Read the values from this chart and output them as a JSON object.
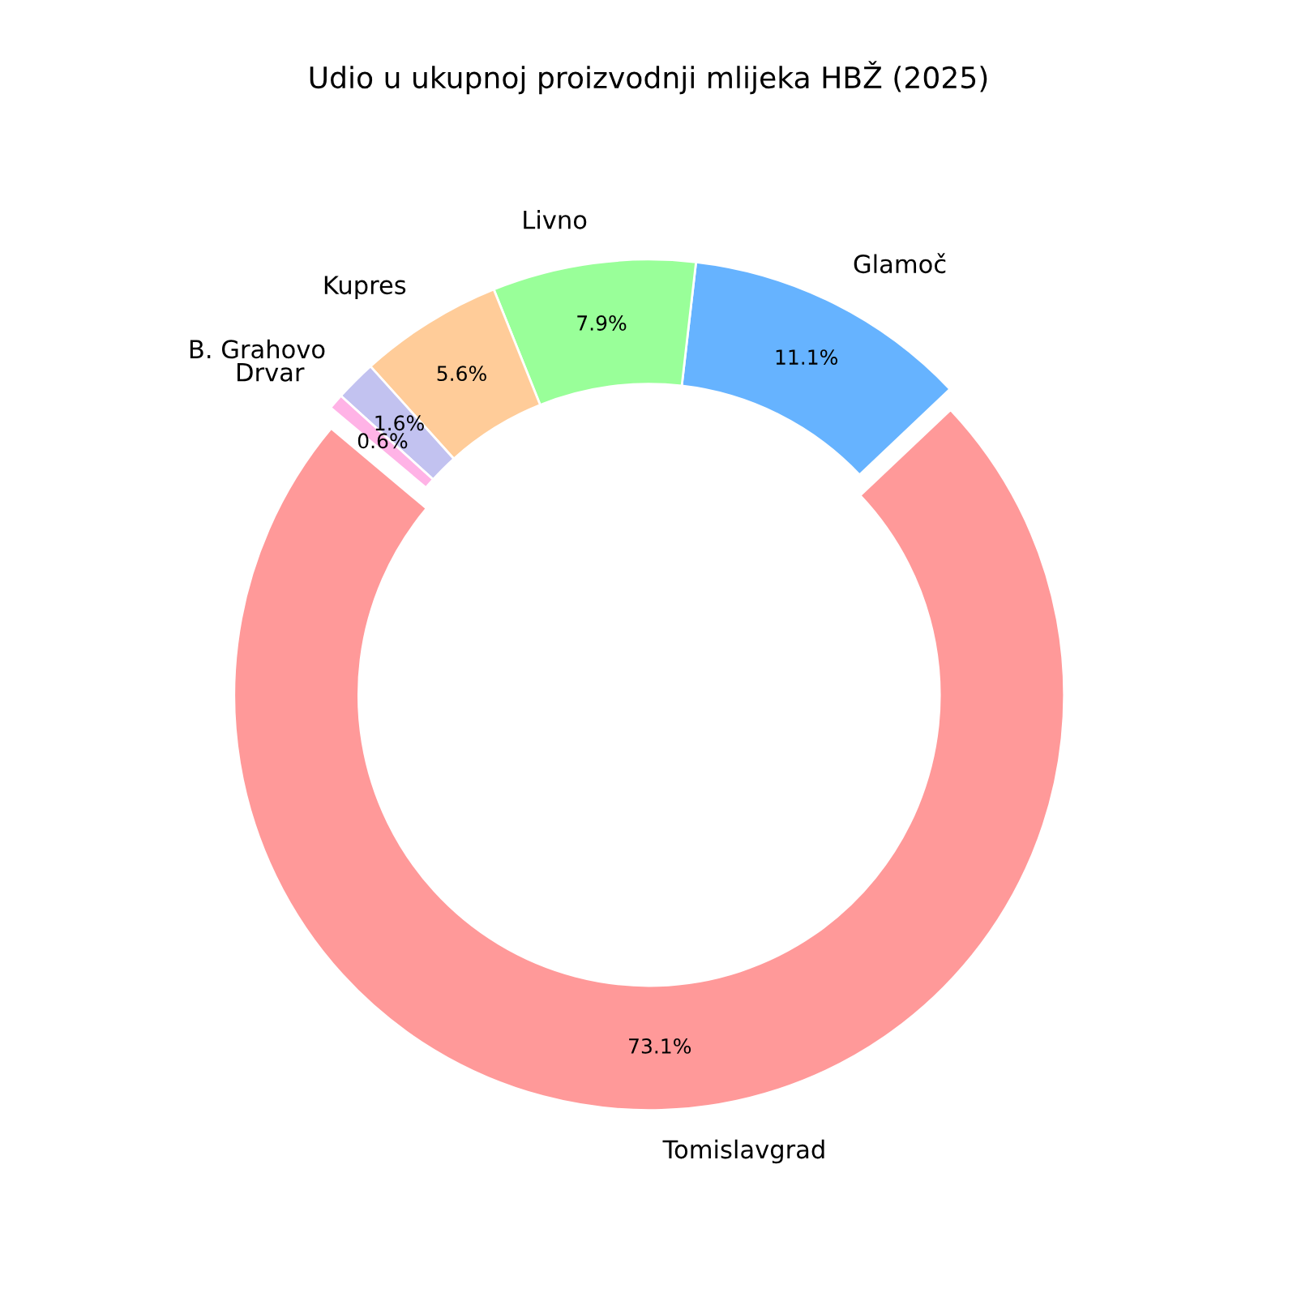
{
  "chart_data": {
    "type": "donut",
    "title": "Udio u ukupnoj proizvodnji mlijeka HBŽ (2025)",
    "categories": [
      "Tomislavgrad",
      "Glamoč",
      "Livno",
      "Kupres",
      "B. Grahovo",
      "Drvar"
    ],
    "values": [
      73.1,
      11.1,
      7.9,
      5.6,
      1.6,
      0.6
    ],
    "colors": [
      "#ff9999",
      "#66b3ff",
      "#99ff99",
      "#ffcc99",
      "#c2c2f0",
      "#ffb3e6"
    ],
    "value_labels": [
      "73.1%",
      "11.1%",
      "7.9%",
      "5.6%",
      "1.6%",
      "0.6%"
    ]
  }
}
